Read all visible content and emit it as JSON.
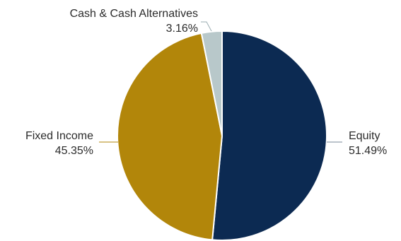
{
  "chart_data": {
    "type": "pie",
    "title": "",
    "slices": [
      {
        "label": "Equity",
        "value_text": "51.49%",
        "value": 51.49,
        "color": "#0c2a52"
      },
      {
        "label": "Fixed Income",
        "value_text": "45.35%",
        "value": 45.35,
        "color": "#b2860a"
      },
      {
        "label": "Cash & Cash Alternatives",
        "value_text": "3.16%",
        "value": 3.16,
        "color": "#b8c8ca"
      }
    ]
  }
}
